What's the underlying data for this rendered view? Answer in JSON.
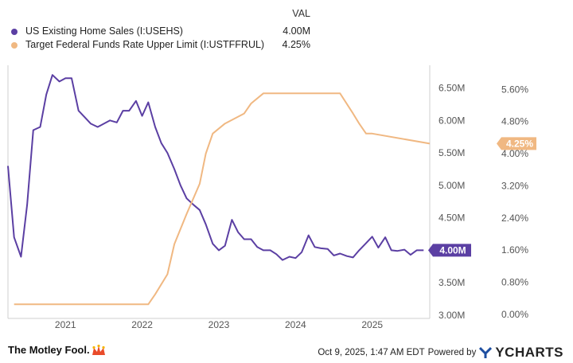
{
  "legend": {
    "header": "VAL",
    "items": [
      {
        "name": "US Existing Home Sales (I:USEHS)",
        "value": "4.00M",
        "color": "#5b3fa3"
      },
      {
        "name": "Target Federal Funds Rate Upper Limit (I:USTFFRUL)",
        "value": "4.25%",
        "color": "#f0b882"
      }
    ]
  },
  "footer": {
    "brand": "The Motley Fool.",
    "timestamp": "Oct 9, 2025, 1:47 AM EDT",
    "powered_by": "Powered by",
    "provider": "YCHARTS"
  },
  "chart_data": {
    "type": "line",
    "title": "",
    "x_axis": {
      "ticks": [
        "2021",
        "2022",
        "2023",
        "2024",
        "2025"
      ],
      "range": [
        2020.25,
        2025.75
      ]
    },
    "y_left": {
      "ticks": [
        "3.00M",
        "3.50M",
        "4.00M",
        "4.50M",
        "5.00M",
        "5.50M",
        "6.00M",
        "6.50M"
      ],
      "range": [
        2.95,
        6.85
      ],
      "unit": "M"
    },
    "y_right": {
      "ticks": [
        "0.00%",
        "0.80%",
        "1.60%",
        "2.40%",
        "3.20%",
        "4.00%",
        "4.80%",
        "5.60%"
      ],
      "range": [
        -0.1,
        6.2
      ],
      "unit": "%"
    },
    "series": [
      {
        "name": "US Existing Home Sales (I:USEHS)",
        "axis": "left",
        "color": "#5b3fa3",
        "end_label": "4.00M",
        "x": [
          2020.25,
          2020.33,
          2020.42,
          2020.5,
          2020.58,
          2020.67,
          2020.75,
          2020.83,
          2020.92,
          2021.0,
          2021.08,
          2021.17,
          2021.25,
          2021.33,
          2021.42,
          2021.5,
          2021.58,
          2021.67,
          2021.75,
          2021.83,
          2021.92,
          2022.0,
          2022.08,
          2022.17,
          2022.25,
          2022.33,
          2022.42,
          2022.5,
          2022.58,
          2022.67,
          2022.75,
          2022.83,
          2022.92,
          2023.0,
          2023.08,
          2023.17,
          2023.25,
          2023.33,
          2023.42,
          2023.5,
          2023.58,
          2023.67,
          2023.75,
          2023.83,
          2023.92,
          2024.0,
          2024.08,
          2024.17,
          2024.25,
          2024.33,
          2024.42,
          2024.5,
          2024.58,
          2024.67,
          2024.75,
          2024.83,
          2024.92,
          2025.0,
          2025.08,
          2025.17,
          2025.25,
          2025.33,
          2025.42,
          2025.5,
          2025.58,
          2025.67
        ],
        "values": [
          5.3,
          4.2,
          3.9,
          4.7,
          5.85,
          5.9,
          6.4,
          6.7,
          6.6,
          6.65,
          6.65,
          6.15,
          6.05,
          5.95,
          5.9,
          5.95,
          6.0,
          5.97,
          6.15,
          6.15,
          6.3,
          6.07,
          6.28,
          5.9,
          5.65,
          5.5,
          5.25,
          5.0,
          4.8,
          4.7,
          4.62,
          4.4,
          4.1,
          4.0,
          4.07,
          4.47,
          4.28,
          4.17,
          4.17,
          4.05,
          4.0,
          4.0,
          3.94,
          3.85,
          3.9,
          3.88,
          3.97,
          4.23,
          4.05,
          4.03,
          4.02,
          3.92,
          3.95,
          3.91,
          3.89,
          4.0,
          4.11,
          4.21,
          4.04,
          4.2,
          4.0,
          3.99,
          4.01,
          3.93,
          4.0,
          4.0
        ]
      },
      {
        "name": "Target Federal Funds Rate Upper Limit (I:USTFFRUL)",
        "axis": "right",
        "color": "#f0b882",
        "end_label": "4.25%",
        "x": [
          2020.33,
          2022.08,
          2022.17,
          2022.33,
          2022.42,
          2022.58,
          2022.75,
          2022.83,
          2022.92,
          2023.08,
          2023.33,
          2023.42,
          2023.58,
          2024.58,
          2024.75,
          2024.83,
          2024.92,
          2025.0,
          2025.75
        ],
        "values": [
          0.25,
          0.25,
          0.5,
          1.0,
          1.75,
          2.5,
          3.25,
          4.0,
          4.5,
          4.75,
          5.0,
          5.25,
          5.5,
          5.5,
          5.0,
          4.75,
          4.5,
          4.5,
          4.25
        ]
      }
    ]
  }
}
